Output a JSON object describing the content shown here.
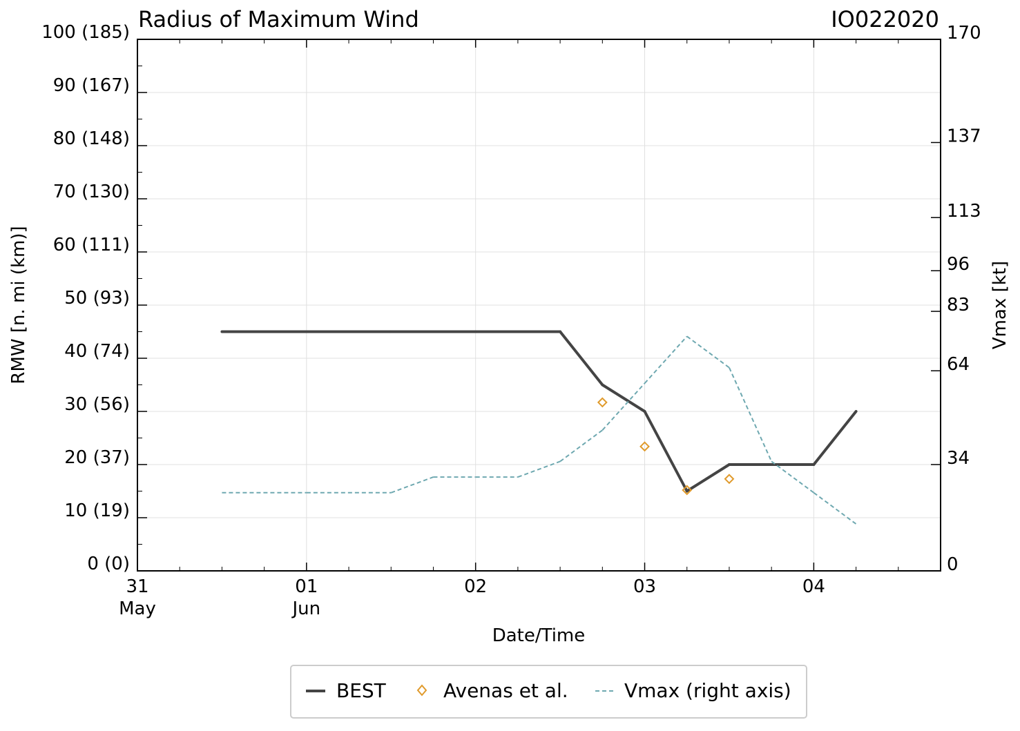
{
  "chart_data": {
    "type": "line",
    "title": "Radius of Maximum Wind",
    "storm_id": "IO022020",
    "xlabel": "Date/Time",
    "ylabel_left": "RMW [n. mi (km)]",
    "ylabel_right": "Vmax [kt]",
    "x_range_days": [
      0,
      4.75
    ],
    "ylim_left": [
      0,
      100
    ],
    "ylim_right": [
      0,
      170
    ],
    "x_ticks": [
      {
        "day": 0,
        "label": "31",
        "sublabel": "May"
      },
      {
        "day": 1,
        "label": "01",
        "sublabel": "Jun"
      },
      {
        "day": 2,
        "label": "02",
        "sublabel": ""
      },
      {
        "day": 3,
        "label": "03",
        "sublabel": ""
      },
      {
        "day": 4,
        "label": "04",
        "sublabel": ""
      }
    ],
    "y_left_ticks": [
      {
        "value": 0,
        "label": "0 (0)"
      },
      {
        "value": 10,
        "label": "10 (19)"
      },
      {
        "value": 20,
        "label": "20 (37)"
      },
      {
        "value": 30,
        "label": "30 (56)"
      },
      {
        "value": 40,
        "label": "40 (74)"
      },
      {
        "value": 50,
        "label": "50 (93)"
      },
      {
        "value": 60,
        "label": "60 (111)"
      },
      {
        "value": 70,
        "label": "70 (130)"
      },
      {
        "value": 80,
        "label": "80 (148)"
      },
      {
        "value": 90,
        "label": "90 (167)"
      },
      {
        "value": 100,
        "label": "100 (185)"
      }
    ],
    "y_right_ticks": [
      {
        "value": 0,
        "label": "0"
      },
      {
        "value": 34,
        "label": "34"
      },
      {
        "value": 64,
        "label": "64"
      },
      {
        "value": 83,
        "label": "83"
      },
      {
        "value": 96,
        "label": "96"
      },
      {
        "value": 113,
        "label": "113"
      },
      {
        "value": 137,
        "label": "137"
      },
      {
        "value": 170,
        "label": "170"
      }
    ],
    "series": [
      {
        "name": "BEST",
        "axis": "left",
        "style": "solid",
        "color": "#444444",
        "x": [
          0.5,
          1.0,
          1.5,
          2.0,
          2.5,
          2.75,
          3.0,
          3.25,
          3.5,
          3.75,
          4.0,
          4.25
        ],
        "values": [
          45,
          45,
          45,
          45,
          45,
          35,
          30,
          15,
          20,
          20,
          20,
          30
        ]
      },
      {
        "name": "Avenas et al.",
        "axis": "left",
        "style": "diamond-markers",
        "color": "#e09a2b",
        "x": [
          2.75,
          3.0,
          3.25,
          3.5
        ],
        "values": [
          31.7,
          23.4,
          15.2,
          17.3
        ]
      },
      {
        "name": "Vmax (right axis)",
        "axis": "right",
        "style": "dashed",
        "color": "#6ea8b0",
        "x": [
          0.5,
          1.0,
          1.5,
          1.75,
          2.0,
          2.25,
          2.5,
          2.75,
          3.0,
          3.25,
          3.5,
          3.75,
          4.0,
          4.25
        ],
        "values": [
          25,
          25,
          25,
          30,
          30,
          30,
          35,
          45,
          60,
          75,
          65,
          35,
          25,
          15
        ]
      }
    ],
    "legend_position": "bottom-center"
  }
}
